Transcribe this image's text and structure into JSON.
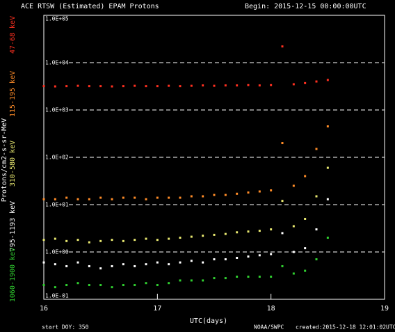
{
  "chart_data": {
    "type": "scatter",
    "title": "ACE RTSW (Estimated) EPAM Protons",
    "begin": "Begin: 2015-12-15 00:00:00UTC",
    "y_label": "Protons/cm2-s-sr-MeV",
    "x_label": "UTC(days)",
    "footer_left": "start DOY: 350",
    "footer_center": "NOAA/SWPC",
    "footer_right": "created:2015-12-18 12:01:02UTC",
    "log_y": true,
    "grid": true,
    "xlim": [
      16,
      19
    ],
    "xticks": [
      16,
      17,
      18,
      19
    ],
    "ylim": [
      0.1,
      100000
    ],
    "yticks": [
      {
        "value": 0.1,
        "label": "1.0E-01"
      },
      {
        "value": 1,
        "label": "1.0E+00"
      },
      {
        "value": 10,
        "label": "1.0E+01"
      },
      {
        "value": 100,
        "label": "1.0E+02"
      },
      {
        "value": 1000,
        "label": "1.0E+03"
      },
      {
        "value": 10000,
        "label": "1.0E+04"
      },
      {
        "value": 100000,
        "label": "1.0E+05"
      }
    ],
    "x": [
      16.0,
      16.1,
      16.2,
      16.3,
      16.4,
      16.5,
      16.6,
      16.7,
      16.8,
      16.9,
      17.0,
      17.1,
      17.2,
      17.3,
      17.4,
      17.5,
      17.6,
      17.7,
      17.8,
      17.9,
      18.0,
      18.1,
      18.2,
      18.3,
      18.4,
      18.5
    ],
    "series": [
      {
        "name": "47-68 keV",
        "color": "#ff3020",
        "values": [
          3200,
          3150,
          3200,
          3250,
          3200,
          3200,
          3150,
          3200,
          3250,
          3200,
          3200,
          3250,
          3200,
          3250,
          3300,
          3250,
          3300,
          3300,
          3350,
          3300,
          3350,
          22000,
          3500,
          3700,
          4000,
          4300
        ]
      },
      {
        "name": "115-195 keV",
        "color": "#ff8c28",
        "values": [
          13,
          13,
          14,
          13,
          13,
          14,
          13,
          14,
          14,
          13,
          14,
          14,
          14,
          15,
          15,
          16,
          16,
          17,
          18,
          19,
          20,
          200,
          25,
          40,
          150,
          450
        ]
      },
      {
        "name": "310-580 keV",
        "color": "#e8e870",
        "values": [
          1.8,
          1.9,
          1.7,
          1.8,
          1.6,
          1.7,
          1.8,
          1.7,
          1.8,
          1.9,
          1.8,
          1.9,
          2.0,
          2.1,
          2.2,
          2.3,
          2.4,
          2.6,
          2.7,
          2.8,
          3.0,
          12,
          3.5,
          5,
          15,
          60
        ]
      },
      {
        "name": "795-1193 keV",
        "color": "#ffffff",
        "values": [
          0.6,
          0.55,
          0.5,
          0.6,
          0.5,
          0.45,
          0.5,
          0.55,
          0.5,
          0.55,
          0.6,
          0.55,
          0.6,
          0.65,
          0.6,
          0.7,
          0.7,
          0.75,
          0.8,
          0.85,
          0.9,
          2.5,
          1,
          1.2,
          3,
          13
        ]
      },
      {
        "name": "1060-1900 keV",
        "color": "#30d030",
        "values": [
          0.2,
          0.18,
          0.2,
          0.22,
          0.2,
          0.2,
          0.18,
          0.2,
          0.2,
          0.22,
          0.2,
          0.22,
          0.25,
          0.25,
          0.25,
          0.28,
          0.28,
          0.3,
          0.3,
          0.3,
          0.3,
          0.5,
          0.35,
          0.4,
          0.7,
          2
        ]
      }
    ]
  }
}
